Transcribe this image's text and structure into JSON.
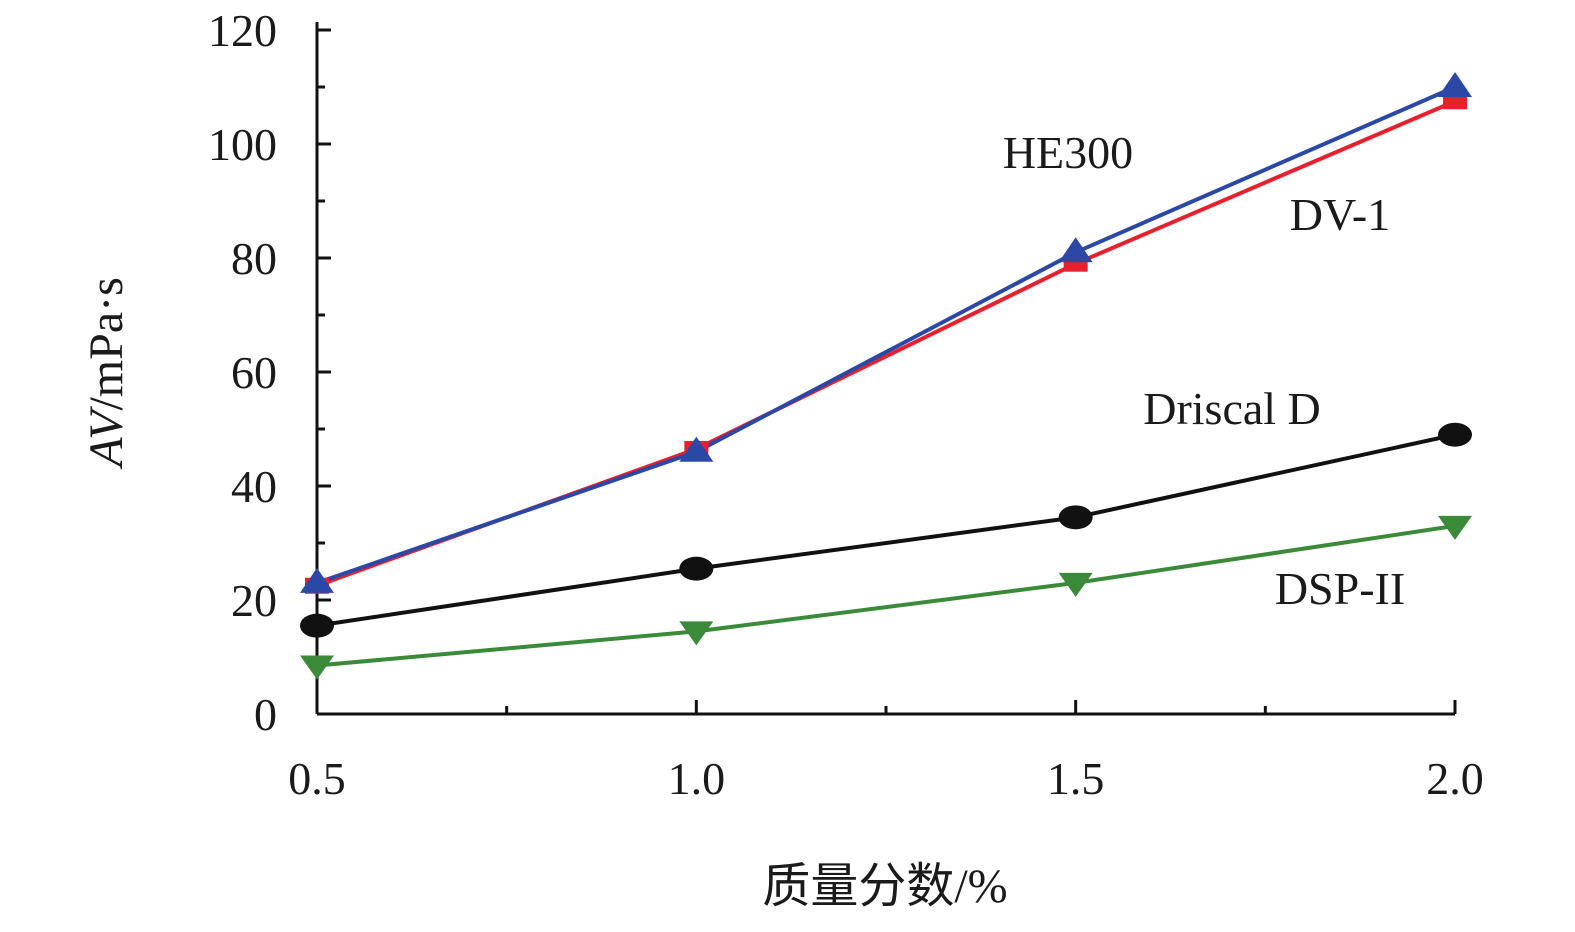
{
  "chart_data": {
    "type": "line",
    "xlabel": "质量分数/%",
    "ylabel_italic": "AV",
    "ylabel_unit": "/mPa·s",
    "x": [
      0.5,
      1.0,
      1.5,
      2.0
    ],
    "x_tick_labels": [
      "0.5",
      "1.0",
      "1.5",
      "2.0"
    ],
    "xlim": [
      0.5,
      2.0
    ],
    "ylim": [
      0,
      120
    ],
    "y_ticks": [
      0,
      20,
      40,
      60,
      80,
      100,
      120
    ],
    "y_tick_labels": [
      "0",
      "20",
      "40",
      "60",
      "80",
      "100",
      "120"
    ],
    "grid": false,
    "legend": "none (series labelled inline)",
    "series": [
      {
        "name": "HE300",
        "values": [
          23,
          46,
          81,
          110
        ],
        "color": "#2c48a6",
        "marker": "triangle-up"
      },
      {
        "name": "DV-1",
        "values": [
          22.5,
          46.5,
          79,
          107.5
        ],
        "color": "#e8202e",
        "marker": "square"
      },
      {
        "name": "Driscal D",
        "values": [
          15.5,
          25.5,
          34.5,
          49
        ],
        "color": "#111111",
        "marker": "circle"
      },
      {
        "name": "DSP-II",
        "values": [
          8.5,
          14.5,
          23,
          33
        ],
        "color": "#3a8a3a",
        "marker": "triangle-down"
      }
    ]
  }
}
